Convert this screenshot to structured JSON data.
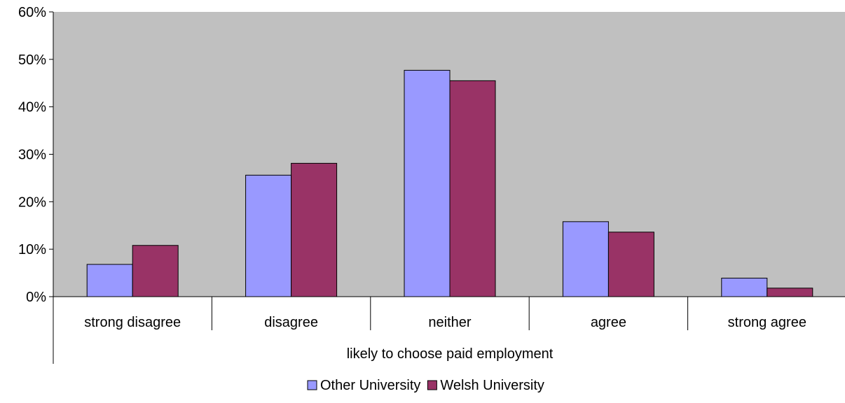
{
  "chart_data": {
    "type": "bar",
    "title": "",
    "xlabel": "",
    "ylabel": "",
    "group_label": "likely to choose paid employment",
    "categories": [
      "strong disagree",
      "disagree",
      "neither",
      "agree",
      "strong agree"
    ],
    "series": [
      {
        "name": "Other University",
        "color": "#9999ff",
        "values": [
          6.8,
          25.6,
          47.7,
          15.8,
          3.9
        ]
      },
      {
        "name": "Welsh University",
        "color": "#993366",
        "values": [
          10.8,
          28.1,
          45.5,
          13.6,
          1.8
        ]
      }
    ],
    "ylim": [
      0,
      60
    ],
    "yticks": [
      0,
      10,
      20,
      30,
      40,
      50,
      60
    ],
    "ytick_labels": [
      "0%",
      "10%",
      "20%",
      "30%",
      "40%",
      "50%",
      "60%"
    ],
    "plot_background": "#c0c0c0",
    "grid": false,
    "legend_position": "bottom"
  }
}
